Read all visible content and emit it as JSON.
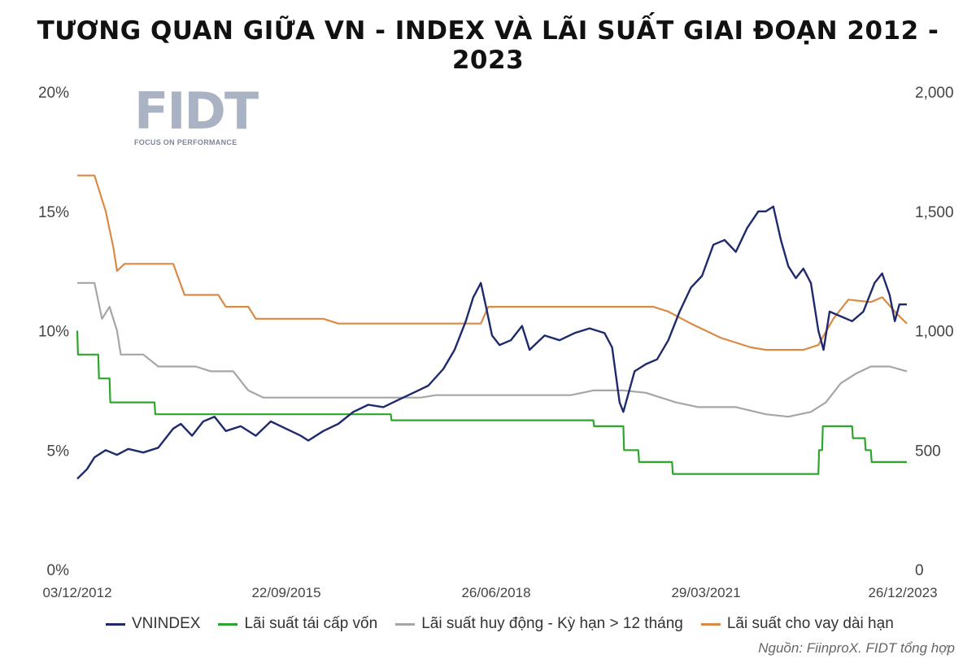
{
  "title": "TƯƠNG QUAN GIỮA VN - INDEX VÀ LÃI SUẤT GIAI ĐOẠN 2012 - 2023",
  "logo": {
    "text": "FIDT",
    "tagline": "FOCUS ON PERFORMANCE"
  },
  "source": "Nguồn: FiinproX. FIDT tổng hợp",
  "colors": {
    "vnindex": "#1f2a6e",
    "tai_cap_von": "#2ea52c",
    "huy_dong": "#a6a6a6",
    "cho_vay": "#d98a45"
  },
  "chart_data": {
    "type": "line",
    "title": "TƯƠNG QUAN GIỮA VN - INDEX VÀ LÃI SUẤT GIAI ĐOẠN 2012 - 2023",
    "x_ticks": [
      "03/12/2012",
      "22/09/2015",
      "26/06/2018",
      "29/03/2021",
      "26/12/2023"
    ],
    "x_range": [
      2012.92,
      2023.98
    ],
    "y_left": {
      "ticks": [
        "0%",
        "5%",
        "10%",
        "15%",
        "20%"
      ],
      "range": [
        0,
        20
      ],
      "unit": "%"
    },
    "y_right": {
      "ticks": [
        "0",
        "500",
        "1,000",
        "1,500",
        "2,000"
      ],
      "range": [
        0,
        2000
      ]
    },
    "legend_position": "bottom",
    "series": [
      {
        "name": "VNINDEX",
        "axis": "right",
        "key": "vnindex",
        "points": [
          [
            2012.92,
            380
          ],
          [
            2013.05,
            420
          ],
          [
            2013.15,
            470
          ],
          [
            2013.3,
            500
          ],
          [
            2013.45,
            480
          ],
          [
            2013.6,
            505
          ],
          [
            2013.8,
            490
          ],
          [
            2014.0,
            510
          ],
          [
            2014.2,
            590
          ],
          [
            2014.3,
            610
          ],
          [
            2014.45,
            560
          ],
          [
            2014.6,
            620
          ],
          [
            2014.75,
            640
          ],
          [
            2014.9,
            580
          ],
          [
            2015.1,
            600
          ],
          [
            2015.3,
            560
          ],
          [
            2015.5,
            620
          ],
          [
            2015.7,
            590
          ],
          [
            2015.9,
            560
          ],
          [
            2016.0,
            540
          ],
          [
            2016.2,
            580
          ],
          [
            2016.4,
            610
          ],
          [
            2016.6,
            660
          ],
          [
            2016.8,
            690
          ],
          [
            2017.0,
            680
          ],
          [
            2017.2,
            710
          ],
          [
            2017.4,
            740
          ],
          [
            2017.6,
            770
          ],
          [
            2017.8,
            840
          ],
          [
            2017.95,
            920
          ],
          [
            2018.1,
            1040
          ],
          [
            2018.2,
            1140
          ],
          [
            2018.3,
            1200
          ],
          [
            2018.37,
            1100
          ],
          [
            2018.45,
            980
          ],
          [
            2018.55,
            940
          ],
          [
            2018.7,
            960
          ],
          [
            2018.85,
            1020
          ],
          [
            2018.95,
            920
          ],
          [
            2019.15,
            980
          ],
          [
            2019.35,
            960
          ],
          [
            2019.55,
            990
          ],
          [
            2019.75,
            1010
          ],
          [
            2019.95,
            990
          ],
          [
            2020.05,
            930
          ],
          [
            2020.15,
            700
          ],
          [
            2020.2,
            660
          ],
          [
            2020.35,
            830
          ],
          [
            2020.5,
            860
          ],
          [
            2020.65,
            880
          ],
          [
            2020.8,
            960
          ],
          [
            2020.95,
            1080
          ],
          [
            2021.1,
            1180
          ],
          [
            2021.25,
            1230
          ],
          [
            2021.4,
            1360
          ],
          [
            2021.55,
            1380
          ],
          [
            2021.7,
            1330
          ],
          [
            2021.85,
            1430
          ],
          [
            2022.0,
            1500
          ],
          [
            2022.1,
            1500
          ],
          [
            2022.2,
            1520
          ],
          [
            2022.3,
            1380
          ],
          [
            2022.4,
            1270
          ],
          [
            2022.5,
            1220
          ],
          [
            2022.6,
            1260
          ],
          [
            2022.7,
            1200
          ],
          [
            2022.8,
            1000
          ],
          [
            2022.87,
            920
          ],
          [
            2022.95,
            1080
          ],
          [
            2023.1,
            1060
          ],
          [
            2023.25,
            1040
          ],
          [
            2023.4,
            1080
          ],
          [
            2023.55,
            1200
          ],
          [
            2023.65,
            1240
          ],
          [
            2023.75,
            1150
          ],
          [
            2023.82,
            1040
          ],
          [
            2023.88,
            1110
          ],
          [
            2023.98,
            1110
          ]
        ]
      },
      {
        "name": "Lãi suất tái cấp vốn",
        "axis": "left",
        "key": "tai_cap_von",
        "points": [
          [
            2012.92,
            10
          ],
          [
            2012.93,
            9
          ],
          [
            2013.2,
            9
          ],
          [
            2013.21,
            8
          ],
          [
            2013.35,
            8
          ],
          [
            2013.36,
            7
          ],
          [
            2013.95,
            7
          ],
          [
            2013.96,
            6.5
          ],
          [
            2017.1,
            6.5
          ],
          [
            2017.11,
            6.25
          ],
          [
            2019.8,
            6.25
          ],
          [
            2019.81,
            6
          ],
          [
            2020.2,
            6
          ],
          [
            2020.21,
            5
          ],
          [
            2020.4,
            5
          ],
          [
            2020.41,
            4.5
          ],
          [
            2020.85,
            4.5
          ],
          [
            2020.86,
            4
          ],
          [
            2022.8,
            4
          ],
          [
            2022.81,
            5
          ],
          [
            2022.85,
            5
          ],
          [
            2022.86,
            6
          ],
          [
            2023.25,
            6
          ],
          [
            2023.26,
            5.5
          ],
          [
            2023.42,
            5.5
          ],
          [
            2023.43,
            5
          ],
          [
            2023.5,
            5
          ],
          [
            2023.51,
            4.5
          ],
          [
            2023.98,
            4.5
          ]
        ]
      },
      {
        "name": "Lãi suất huy động - Kỳ hạn > 12 tháng",
        "axis": "left",
        "key": "huy_dong",
        "points": [
          [
            2012.92,
            12
          ],
          [
            2013.15,
            12
          ],
          [
            2013.25,
            10.5
          ],
          [
            2013.35,
            11
          ],
          [
            2013.45,
            10
          ],
          [
            2013.5,
            9
          ],
          [
            2013.8,
            9
          ],
          [
            2014.0,
            8.5
          ],
          [
            2014.5,
            8.5
          ],
          [
            2014.7,
            8.3
          ],
          [
            2015.0,
            8.3
          ],
          [
            2015.2,
            7.5
          ],
          [
            2015.4,
            7.2
          ],
          [
            2017.5,
            7.2
          ],
          [
            2017.7,
            7.3
          ],
          [
            2019.5,
            7.3
          ],
          [
            2019.8,
            7.5
          ],
          [
            2020.2,
            7.5
          ],
          [
            2020.5,
            7.4
          ],
          [
            2020.9,
            7.0
          ],
          [
            2021.2,
            6.8
          ],
          [
            2021.7,
            6.8
          ],
          [
            2022.1,
            6.5
          ],
          [
            2022.4,
            6.4
          ],
          [
            2022.7,
            6.6
          ],
          [
            2022.9,
            7.0
          ],
          [
            2023.1,
            7.8
          ],
          [
            2023.3,
            8.2
          ],
          [
            2023.5,
            8.5
          ],
          [
            2023.75,
            8.5
          ],
          [
            2023.98,
            8.3
          ]
        ]
      },
      {
        "name": "Lãi suất cho vay dài hạn",
        "axis": "left",
        "key": "cho_vay",
        "points": [
          [
            2012.92,
            16.5
          ],
          [
            2013.15,
            16.5
          ],
          [
            2013.3,
            15
          ],
          [
            2013.4,
            13.5
          ],
          [
            2013.45,
            12.5
          ],
          [
            2013.55,
            12.8
          ],
          [
            2014.2,
            12.8
          ],
          [
            2014.35,
            11.5
          ],
          [
            2014.8,
            11.5
          ],
          [
            2014.9,
            11
          ],
          [
            2015.2,
            11
          ],
          [
            2015.3,
            10.5
          ],
          [
            2016.2,
            10.5
          ],
          [
            2016.4,
            10.3
          ],
          [
            2018.3,
            10.3
          ],
          [
            2018.4,
            11
          ],
          [
            2020.6,
            11
          ],
          [
            2020.8,
            10.8
          ],
          [
            2021.1,
            10.3
          ],
          [
            2021.5,
            9.7
          ],
          [
            2021.9,
            9.3
          ],
          [
            2022.1,
            9.2
          ],
          [
            2022.6,
            9.2
          ],
          [
            2022.8,
            9.4
          ],
          [
            2023.0,
            10.5
          ],
          [
            2023.2,
            11.3
          ],
          [
            2023.5,
            11.2
          ],
          [
            2023.65,
            11.4
          ],
          [
            2023.85,
            10.7
          ],
          [
            2023.98,
            10.3
          ]
        ]
      }
    ]
  }
}
